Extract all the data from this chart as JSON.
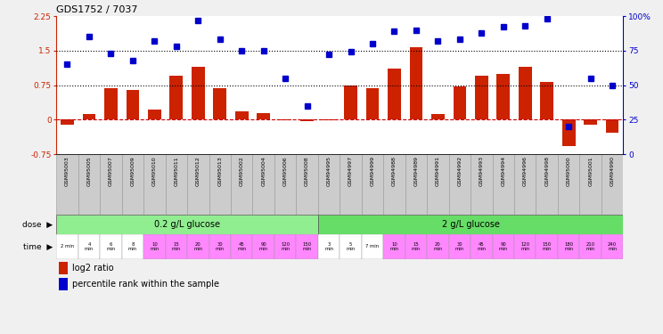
{
  "title": "GDS1752 / 7037",
  "samples": [
    "GSM95003",
    "GSM95005",
    "GSM95007",
    "GSM95009",
    "GSM95010",
    "GSM95011",
    "GSM95012",
    "GSM95013",
    "GSM95002",
    "GSM95004",
    "GSM95006",
    "GSM95008",
    "GSM94995",
    "GSM94997",
    "GSM94999",
    "GSM94988",
    "GSM94989",
    "GSM94991",
    "GSM94992",
    "GSM94993",
    "GSM94994",
    "GSM94996",
    "GSM94998",
    "GSM95000",
    "GSM95001",
    "GSM94990"
  ],
  "log2_ratio": [
    -0.12,
    0.12,
    0.68,
    0.65,
    0.22,
    0.95,
    1.15,
    0.68,
    0.18,
    0.15,
    -0.02,
    -0.03,
    -0.02,
    0.75,
    0.68,
    1.1,
    1.58,
    0.12,
    0.72,
    0.95,
    1.0,
    1.15,
    0.82,
    -0.58,
    -0.12,
    -0.28
  ],
  "percentile": [
    65,
    85,
    73,
    68,
    82,
    78,
    97,
    83,
    75,
    75,
    55,
    35,
    72,
    74,
    80,
    89,
    90,
    82,
    83,
    88,
    92,
    93,
    98,
    20,
    55,
    50
  ],
  "dose_groups": [
    {
      "label": "0.2 g/L glucose",
      "start": 0,
      "end": 12,
      "color": "#90ee90"
    },
    {
      "label": "2 g/L glucose",
      "start": 12,
      "end": 26,
      "color": "#66dd66"
    }
  ],
  "time_labels": [
    "2 min",
    "4\nmin",
    "6\nmin",
    "8\nmin",
    "10\nmin",
    "15\nmin",
    "20\nmin",
    "30\nmin",
    "45\nmin",
    "90\nmin",
    "120\nmin",
    "150\nmin",
    "3\nmin",
    "5\nmin",
    "7 min",
    "10\nmin",
    "15\nmin",
    "20\nmin",
    "30\nmin",
    "45\nmin",
    "90\nmin",
    "120\nmin",
    "150\nmin",
    "180\nmin",
    "210\nmin",
    "240\nmin"
  ],
  "time_colors": [
    "#ffffff",
    "#ffffff",
    "#ffffff",
    "#ffffff",
    "#ff88ff",
    "#ff88ff",
    "#ff88ff",
    "#ff88ff",
    "#ff88ff",
    "#ff88ff",
    "#ff88ff",
    "#ff88ff",
    "#ffffff",
    "#ffffff",
    "#ffffff",
    "#ff88ff",
    "#ff88ff",
    "#ff88ff",
    "#ff88ff",
    "#ff88ff",
    "#ff88ff",
    "#ff88ff",
    "#ff88ff",
    "#ff88ff",
    "#ff88ff",
    "#ff88ff"
  ],
  "bar_color": "#cc2200",
  "dot_color": "#0000cc",
  "hline_color": "#cc0000",
  "dotted_line_color": "#000000",
  "ylim_left": [
    -0.75,
    2.25
  ],
  "ylim_right": [
    0,
    100
  ],
  "yticks_left": [
    -0.75,
    0,
    0.75,
    1.5,
    2.25
  ],
  "yticks_right": [
    0,
    25,
    50,
    75,
    100
  ],
  "ytick_labels_left": [
    "-0.75",
    "0",
    "0.75",
    "1.5",
    "2.25"
  ],
  "ytick_labels_right": [
    "0",
    "25",
    "50",
    "75",
    "100%"
  ],
  "hlines": [
    0.75,
    1.5
  ],
  "bg_color": "#f0f0f0",
  "sample_box_color": "#cccccc",
  "plot_bg": "#ffffff"
}
